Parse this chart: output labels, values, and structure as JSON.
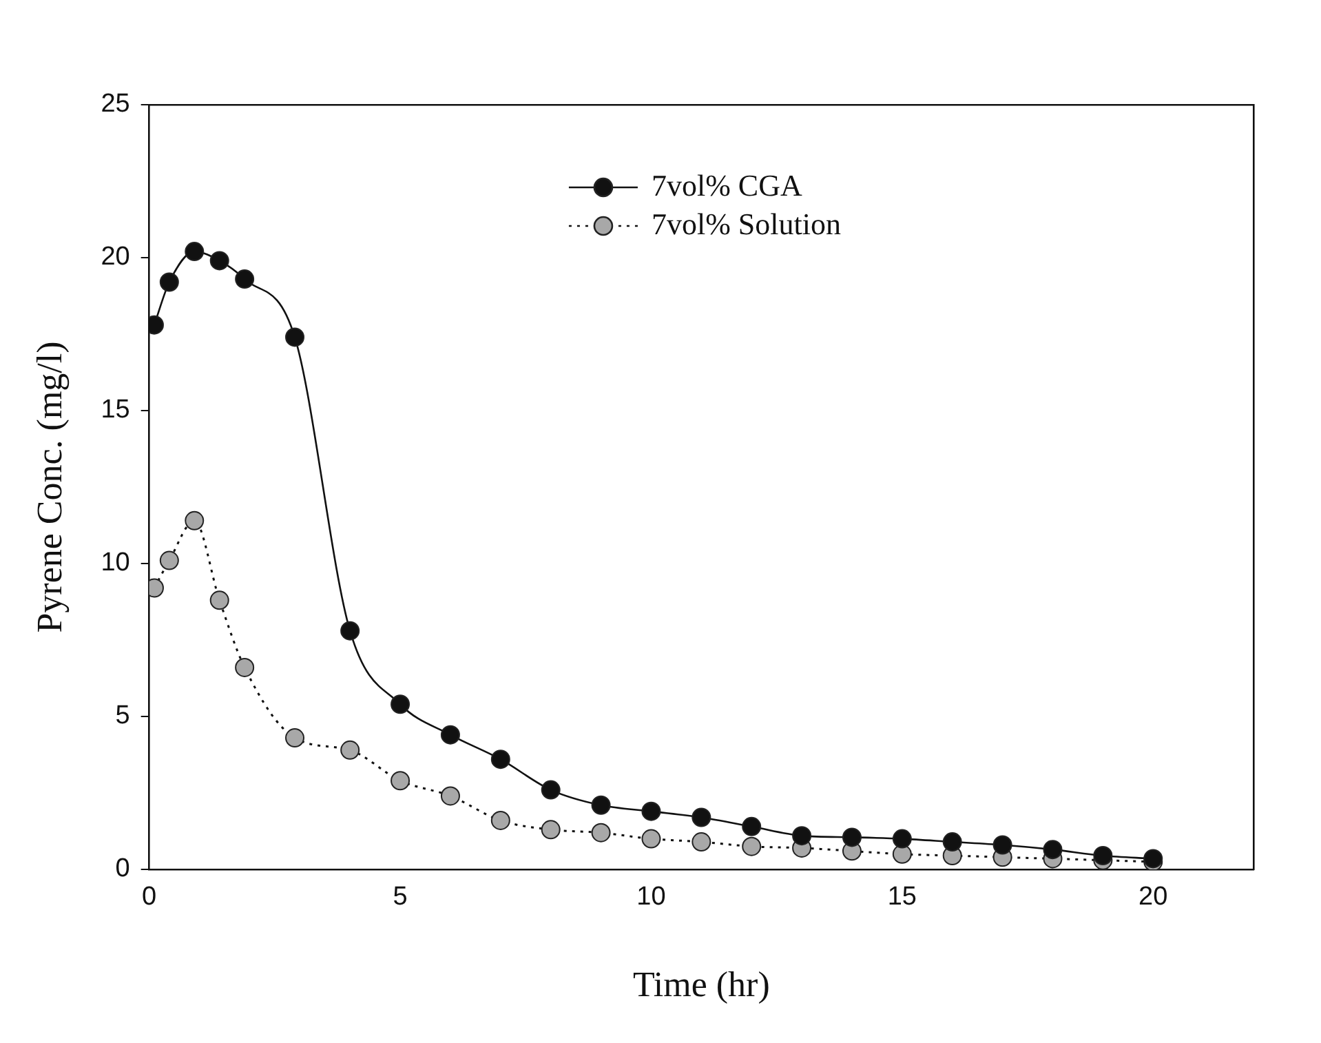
{
  "chart_data": {
    "type": "line",
    "xlabel": "Time (hr)",
    "ylabel": "Pyrene Conc. (mg/l)",
    "xlim": [
      0,
      22
    ],
    "xticks": [
      0,
      5,
      10,
      15,
      20
    ],
    "ylim": [
      0,
      25
    ],
    "yticks": [
      0,
      5,
      10,
      15,
      20,
      25
    ],
    "grid": false,
    "legend": "top right",
    "marker": "circle",
    "series": [
      {
        "name": "7vol% CGA",
        "color": "#111111",
        "line_style": "solid",
        "x": [
          0.1,
          0.4,
          0.9,
          1.4,
          1.9,
          2.9,
          4,
          5,
          6,
          7,
          8,
          9,
          10,
          11,
          12,
          13,
          14,
          15,
          16,
          17,
          18,
          19,
          20
        ],
        "values": [
          17.8,
          19.2,
          20.2,
          19.9,
          19.3,
          17.4,
          7.8,
          5.4,
          4.4,
          3.6,
          2.6,
          2.1,
          1.9,
          1.7,
          1.4,
          1.1,
          1.05,
          1.0,
          0.9,
          0.8,
          0.65,
          0.45,
          0.35
        ]
      },
      {
        "name": "7vol% Solution",
        "color": "#a8a8a8",
        "line_style": "dotted",
        "x": [
          0.1,
          0.4,
          0.9,
          1.4,
          1.9,
          2.9,
          4,
          5,
          6,
          7,
          8,
          9,
          10,
          11,
          12,
          13,
          14,
          15,
          16,
          17,
          18,
          19,
          20
        ],
        "values": [
          9.2,
          10.1,
          11.4,
          8.8,
          6.6,
          4.3,
          3.9,
          2.9,
          2.4,
          1.6,
          1.3,
          1.2,
          1.0,
          0.9,
          0.75,
          0.7,
          0.6,
          0.5,
          0.45,
          0.4,
          0.35,
          0.3,
          0.25
        ]
      }
    ]
  }
}
